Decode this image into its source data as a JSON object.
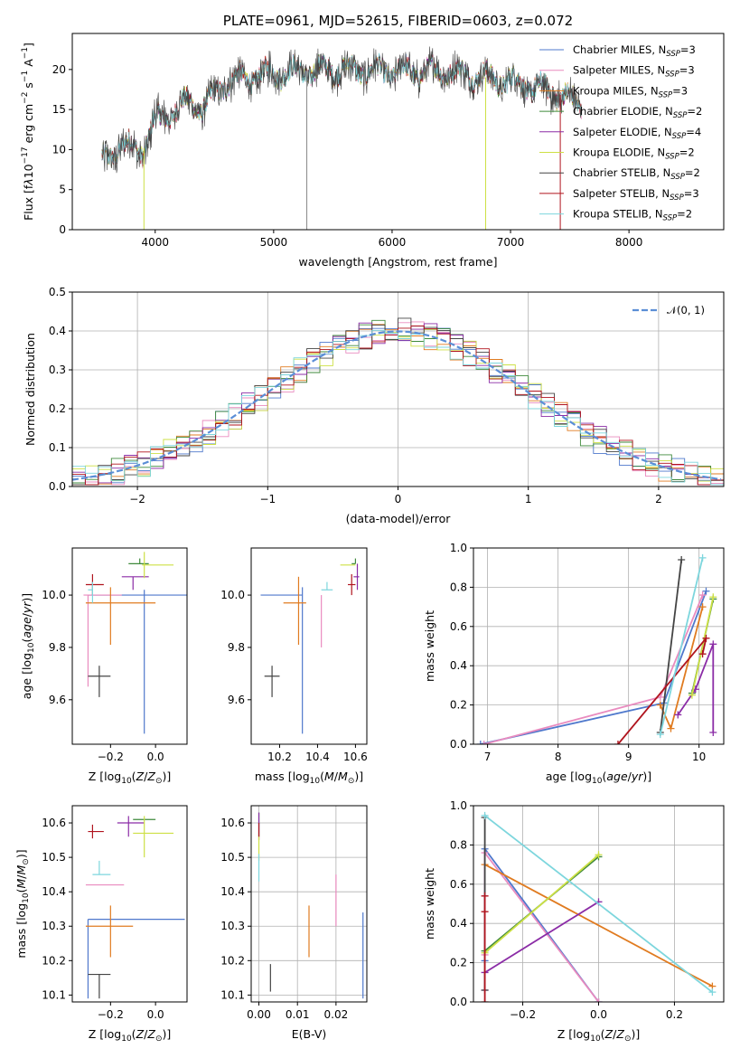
{
  "chart_data": [
    {
      "id": "spectrum",
      "type": "line",
      "title": "PLATE=0961, MJD=52615, FIBERID=0603, z=0.072",
      "xlabel": "wavelength [Angstrom, rest frame]",
      "ylabel_html": "Flux [f<tspan font-style='italic'>λ</tspan>10<tspan dy='-6' font-size='9'>−17</tspan><tspan dy='6'> erg cm</tspan><tspan dy='-6' font-size='9'>−2</tspan><tspan dy='6'> s</tspan><tspan dy='-6' font-size='9'>−1</tspan><tspan dy='6'> A</tspan><tspan dy='-6' font-size='9'>−1</tspan><tspan dy='6'>]</tspan>",
      "xlim": [
        3300,
        8800
      ],
      "ylim": [
        0,
        24.5
      ],
      "xticks": [
        4000,
        5000,
        6000,
        7000,
        8000
      ],
      "yticks": [
        0,
        5,
        10,
        15,
        20
      ],
      "xtick_labels": [
        "4000",
        "5000",
        "6000",
        "7000",
        "8000"
      ],
      "ytick_labels": [
        "0",
        "5",
        "10",
        "15",
        "20"
      ],
      "continuum": [
        [
          3550,
          8.5
        ],
        [
          3700,
          10.5
        ],
        [
          3900,
          10
        ],
        [
          4000,
          13.5
        ],
        [
          4300,
          16
        ],
        [
          4400,
          15
        ],
        [
          4600,
          18.5
        ],
        [
          5000,
          19.5
        ],
        [
          5500,
          20
        ],
        [
          6000,
          19.8
        ],
        [
          6500,
          19.7
        ],
        [
          7000,
          18.5
        ],
        [
          7400,
          17
        ],
        [
          7600,
          15.5
        ]
      ],
      "legend": [
        {
          "label": "Chabrier MILES, N",
          "sub": "SSP",
          "suffix": "=3",
          "color": "#4f78cc"
        },
        {
          "label": "Salpeter MILES, N",
          "sub": "SSP",
          "suffix": "=3",
          "color": "#e98bbf"
        },
        {
          "label": "Kroupa MILES, N",
          "sub": "SSP",
          "suffix": "=3",
          "color": "#e07b20"
        },
        {
          "label": "Chabrier ELODIE, N",
          "sub": "SSP",
          "suffix": "=2",
          "color": "#3f8a3b"
        },
        {
          "label": "Salpeter ELODIE, N",
          "sub": "SSP",
          "suffix": "=4",
          "color": "#8b2ca6"
        },
        {
          "label": "Kroupa ELODIE, N",
          "sub": "SSP",
          "suffix": "=2",
          "color": "#cde045"
        },
        {
          "label": "Chabrier STELIB, N",
          "sub": "SSP",
          "suffix": "=2",
          "color": "#444444"
        },
        {
          "label": "Salpeter STELIB, N",
          "sub": "SSP",
          "suffix": "=3",
          "color": "#b0141e"
        },
        {
          "label": "Kroupa STELIB, N",
          "sub": "SSP",
          "suffix": "=2",
          "color": "#7dd6dd"
        }
      ]
    },
    {
      "id": "residuals",
      "type": "histogram",
      "xlabel": "(data-model)/error",
      "ylabel": "Normed distribution",
      "xlim": [
        -2.5,
        2.5
      ],
      "ylim": [
        0,
        0.5
      ],
      "xticks": [
        -2,
        -1,
        0,
        1,
        2
      ],
      "xtick_labels": [
        "−2",
        "−1",
        "0",
        "1",
        "2"
      ],
      "yticks": [
        0,
        0.1,
        0.2,
        0.3,
        0.4,
        0.5
      ],
      "ytick_labels": [
        "0.0",
        "0.1",
        "0.2",
        "0.3",
        "0.4",
        "0.5"
      ],
      "bin_width": 0.1,
      "gaussian_legend": "𝒩(0, 1)",
      "gaussian_color": "#5b8ed6"
    },
    {
      "id": "age_vs_Z",
      "type": "errorbar",
      "xlabel_html": "Z [log<tspan dy='3' font-size='9'>10</tspan><tspan dy='-3'>(</tspan><tspan font-style='italic'>Z</tspan>/<tspan font-style='italic'>Z</tspan><tspan dy='3' font-size='9'>⊙</tspan><tspan dy='-3'>)]</tspan>",
      "ylabel_html": "age  [log<tspan dy='3' font-size='9'>10</tspan><tspan dy='-3'>(</tspan><tspan font-style='italic'>age</tspan>/<tspan font-style='italic'>yr</tspan>)]",
      "xlim": [
        -0.37,
        0.14
      ],
      "ylim": [
        9.43,
        10.18
      ],
      "xticks": [
        -0.2,
        0.0
      ],
      "xtick_labels": [
        "−0.2",
        "0.0"
      ],
      "yticks": [
        9.6,
        9.8,
        10.0
      ],
      "ytick_labels": [
        "9.6",
        "9.8",
        "10.0"
      ],
      "points": [
        {
          "x": -0.05,
          "y": 10.0,
          "xerr": [
            0.25,
            0.2
          ],
          "yerr": [
            0.53,
            0.02
          ],
          "color": "#4f78cc"
        },
        {
          "x": -0.3,
          "y": 10.0,
          "xerr": [
            0.02,
            0.15
          ],
          "yerr": [
            0.35,
            0.0
          ],
          "color": "#e98bbf"
        },
        {
          "x": -0.2,
          "y": 9.97,
          "xerr": [
            0.11,
            0.2
          ],
          "yerr": [
            0.16,
            0.06
          ],
          "color": "#e07b20"
        },
        {
          "x": -0.07,
          "y": 10.12,
          "xerr": [
            0.05,
            0.04
          ],
          "yerr": [
            0.0,
            0.02
          ],
          "color": "#3f8a3b"
        },
        {
          "x": -0.1,
          "y": 10.07,
          "xerr": [
            0.05,
            0.07
          ],
          "yerr": [
            0.05,
            0.0
          ],
          "color": "#8b2ca6"
        },
        {
          "x": -0.05,
          "y": 10.115,
          "xerr": [
            0.01,
            0.13
          ],
          "yerr": [
            0.05,
            0.05
          ],
          "color": "#cde045"
        },
        {
          "x": -0.25,
          "y": 9.69,
          "xerr": [
            0.05,
            0.05
          ],
          "yerr": [
            0.08,
            0.04
          ],
          "color": "#444444"
        },
        {
          "x": -0.28,
          "y": 10.04,
          "xerr": [
            0.03,
            0.05
          ],
          "yerr": [
            0.04,
            0.04
          ],
          "color": "#b0141e"
        },
        {
          "x": -0.28,
          "y": 10.02,
          "xerr": [
            0.02,
            0.0
          ],
          "yerr": [
            0.05,
            0.03
          ],
          "color": "#7dd6dd"
        }
      ]
    },
    {
      "id": "age_vs_mass",
      "type": "errorbar",
      "xlabel_html": "mass [log<tspan dy='3' font-size='9'>10</tspan><tspan dy='-3'>(</tspan><tspan font-style='italic'>M</tspan>/<tspan font-style='italic'>M</tspan><tspan dy='3' font-size='9'>⊙</tspan><tspan dy='-3'>)]</tspan>",
      "xlim": [
        10.05,
        10.66
      ],
      "ylim": [
        9.43,
        10.18
      ],
      "xticks": [
        10.2,
        10.4,
        10.6
      ],
      "xtick_labels": [
        "10.2",
        "10.4",
        "10.6"
      ],
      "yticks": [
        9.6,
        9.8,
        10.0
      ],
      "ytick_labels": [
        "9.6",
        "9.8",
        "10.0"
      ],
      "points": [
        {
          "x": 10.32,
          "y": 10.0,
          "xerr": [
            0.22,
            0.0
          ],
          "yerr": [
            0.53,
            0.03
          ],
          "color": "#4f78cc"
        },
        {
          "x": 10.42,
          "y": 10.0,
          "xerr": [
            0.0,
            0.0
          ],
          "yerr": [
            0.2,
            0.0
          ],
          "color": "#e98bbf"
        },
        {
          "x": 10.3,
          "y": 9.97,
          "xerr": [
            0.08,
            0.04
          ],
          "yerr": [
            0.16,
            0.1
          ],
          "color": "#e07b20"
        },
        {
          "x": 10.6,
          "y": 10.12,
          "xerr": [
            0.02,
            0.0
          ],
          "yerr": [
            0.0,
            0.02
          ],
          "color": "#3f8a3b"
        },
        {
          "x": 10.61,
          "y": 10.07,
          "xerr": [
            0.02,
            0.01
          ],
          "yerr": [
            0.05,
            0.05
          ],
          "color": "#8b2ca6"
        },
        {
          "x": 10.57,
          "y": 10.115,
          "xerr": [
            0.05,
            0.03
          ],
          "yerr": [
            0.0,
            0.0
          ],
          "color": "#cde045"
        },
        {
          "x": 10.16,
          "y": 9.69,
          "xerr": [
            0.04,
            0.04
          ],
          "yerr": [
            0.08,
            0.04
          ],
          "color": "#444444"
        },
        {
          "x": 10.58,
          "y": 10.04,
          "xerr": [
            0.02,
            0.02
          ],
          "yerr": [
            0.04,
            0.04
          ],
          "color": "#b0141e"
        },
        {
          "x": 10.45,
          "y": 10.02,
          "xerr": [
            0.03,
            0.03
          ],
          "yerr": [
            0.0,
            0.03
          ],
          "color": "#7dd6dd"
        }
      ]
    },
    {
      "id": "weight_vs_age",
      "type": "line",
      "xlabel_html": "age  [log<tspan dy='3' font-size='9'>10</tspan><tspan dy='-3'>(</tspan><tspan font-style='italic'>age</tspan>/<tspan font-style='italic'>yr</tspan>)]",
      "ylabel": "mass weight",
      "xlim": [
        6.8,
        10.35
      ],
      "ylim": [
        0,
        1
      ],
      "xticks": [
        7,
        8,
        9,
        10
      ],
      "xtick_labels": [
        "7",
        "8",
        "9",
        "10"
      ],
      "yticks": [
        0,
        0.2,
        0.4,
        0.6,
        0.8,
        1.0
      ],
      "ytick_labels": [
        "0.0",
        "0.2",
        "0.4",
        "0.6",
        "0.8",
        "1.0"
      ],
      "series": [
        {
          "color": "#4f78cc",
          "x": [
            6.9,
            9.5,
            10.1
          ],
          "y": [
            0.0,
            0.21,
            0.78
          ]
        },
        {
          "color": "#e98bbf",
          "x": [
            6.95,
            9.45,
            10.05
          ],
          "y": [
            0.0,
            0.24,
            0.76
          ]
        },
        {
          "color": "#e07b20",
          "x": [
            9.45,
            9.6,
            10.05
          ],
          "y": [
            0.2,
            0.08,
            0.7
          ]
        },
        {
          "color": "#3f8a3b",
          "x": [
            9.9,
            10.2
          ],
          "y": [
            0.26,
            0.74
          ]
        },
        {
          "color": "#8b2ca6",
          "x": [
            9.7,
            9.95,
            10.2,
            10.2
          ],
          "y": [
            0.15,
            0.28,
            0.51,
            0.06
          ]
        },
        {
          "color": "#cde045",
          "x": [
            9.9,
            10.2
          ],
          "y": [
            0.25,
            0.75
          ]
        },
        {
          "color": "#444444",
          "x": [
            9.45,
            9.75
          ],
          "y": [
            0.06,
            0.94
          ]
        },
        {
          "color": "#b0141e",
          "x": [
            8.85,
            10.1,
            10.05
          ],
          "y": [
            0.0,
            0.54,
            0.46
          ]
        },
        {
          "color": "#7dd6dd",
          "x": [
            9.45,
            10.05
          ],
          "y": [
            0.05,
            0.95
          ]
        }
      ]
    },
    {
      "id": "mass_vs_Z",
      "type": "errorbar",
      "xlabel_html": "Z [log<tspan dy='3' font-size='9'>10</tspan><tspan dy='-3'>(</tspan><tspan font-style='italic'>Z</tspan>/<tspan font-style='italic'>Z</tspan><tspan dy='3' font-size='9'>⊙</tspan><tspan dy='-3'>)]</tspan>",
      "ylabel_html": "mass [log<tspan dy='3' font-size='9'>10</tspan><tspan dy='-3'>(</tspan><tspan font-style='italic'>M</tspan>/<tspan font-style='italic'>M</tspan><tspan dy='3' font-size='9'>⊙</tspan><tspan dy='-3'>)]</tspan>",
      "xlim": [
        -0.37,
        0.14
      ],
      "ylim": [
        10.08,
        10.65
      ],
      "xticks": [
        -0.2,
        0.0
      ],
      "xtick_labels": [
        "−0.2",
        "0.0"
      ],
      "yticks": [
        10.1,
        10.2,
        10.3,
        10.4,
        10.5,
        10.6
      ],
      "ytick_labels": [
        "10.1",
        "10.2",
        "10.3",
        "10.4",
        "10.5",
        "10.6"
      ],
      "points": [
        {
          "x": -0.3,
          "y": 10.32,
          "xerr": [
            0.0,
            0.43
          ],
          "yerr": [
            0.23,
            0.0
          ],
          "color": "#4f78cc"
        },
        {
          "x": -0.22,
          "y": 10.42,
          "xerr": [
            0.09,
            0.08
          ],
          "yerr": [
            0.0,
            0.0
          ],
          "color": "#e98bbf"
        },
        {
          "x": -0.2,
          "y": 10.3,
          "xerr": [
            0.11,
            0.1
          ],
          "yerr": [
            0.09,
            0.06
          ],
          "color": "#e07b20"
        },
        {
          "x": -0.05,
          "y": 10.61,
          "xerr": [
            0.05,
            0.05
          ],
          "yerr": [
            0.0,
            0.0
          ],
          "color": "#3f8a3b"
        },
        {
          "x": -0.12,
          "y": 10.6,
          "xerr": [
            0.05,
            0.07
          ],
          "yerr": [
            0.04,
            0.02
          ],
          "color": "#8b2ca6"
        },
        {
          "x": -0.05,
          "y": 10.57,
          "xerr": [
            0.05,
            0.13
          ],
          "yerr": [
            0.07,
            0.05
          ],
          "color": "#cde045"
        },
        {
          "x": -0.25,
          "y": 10.16,
          "xerr": [
            0.05,
            0.05
          ],
          "yerr": [
            0.07,
            0.0
          ],
          "color": "#444444"
        },
        {
          "x": -0.28,
          "y": 10.575,
          "xerr": [
            0.02,
            0.05
          ],
          "yerr": [
            0.02,
            0.02
          ],
          "color": "#b0141e"
        },
        {
          "x": -0.25,
          "y": 10.45,
          "xerr": [
            0.03,
            0.05
          ],
          "yerr": [
            0.0,
            0.04
          ],
          "color": "#7dd6dd"
        }
      ]
    },
    {
      "id": "mass_vs_ebv",
      "type": "errorbar",
      "xlabel": "E(B-V)",
      "xlim": [
        -0.002,
        0.028
      ],
      "ylim": [
        10.08,
        10.65
      ],
      "xticks": [
        0.0,
        0.01,
        0.02
      ],
      "xtick_labels": [
        "0.00",
        "0.01",
        "0.02"
      ],
      "yticks": [
        10.1,
        10.2,
        10.3,
        10.4,
        10.5,
        10.6
      ],
      "ytick_labels": [
        "10.1",
        "10.2",
        "10.3",
        "10.4",
        "10.5",
        "10.6"
      ],
      "points": [
        {
          "x": 0.027,
          "y": 10.32,
          "yerr": [
            0.23,
            0.02
          ],
          "color": "#4f78cc"
        },
        {
          "x": 0.02,
          "y": 10.37,
          "yerr": [
            0.07,
            0.08
          ],
          "color": "#e98bbf"
        },
        {
          "x": 0.013,
          "y": 10.3,
          "yerr": [
            0.09,
            0.06
          ],
          "color": "#e07b20"
        },
        {
          "x": 0.0,
          "y": 10.6,
          "yerr": [
            0.04,
            0.03
          ],
          "color": "#3f8a3b"
        },
        {
          "x": 0.0,
          "y": 10.59,
          "yerr": [
            0.04,
            0.04
          ],
          "color": "#8b2ca6"
        },
        {
          "x": 0.0,
          "y": 10.53,
          "yerr": [
            0.04,
            0.04
          ],
          "color": "#cde045"
        },
        {
          "x": 0.003,
          "y": 10.15,
          "yerr": [
            0.04,
            0.04
          ],
          "color": "#444444"
        },
        {
          "x": 0.0,
          "y": 10.58,
          "yerr": [
            0.02,
            0.02
          ],
          "color": "#b0141e"
        },
        {
          "x": 0.0,
          "y": 10.47,
          "yerr": [
            0.04,
            0.04
          ],
          "color": "#7dd6dd"
        }
      ]
    },
    {
      "id": "weight_vs_Z",
      "type": "line",
      "xlabel_html": "Z [log<tspan dy='3' font-size='9'>10</tspan><tspan dy='-3'>(</tspan><tspan font-style='italic'>Z</tspan>/<tspan font-style='italic'>Z</tspan><tspan dy='3' font-size='9'>⊙</tspan><tspan dy='-3'>)]</tspan>",
      "ylabel": "mass weight",
      "xlim": [
        -0.33,
        0.33
      ],
      "ylim": [
        0,
        1
      ],
      "xticks": [
        -0.2,
        0.0,
        0.2
      ],
      "xtick_labels": [
        "−0.2",
        "0.0",
        "0.2"
      ],
      "yticks": [
        0,
        0.2,
        0.4,
        0.6,
        0.8,
        1.0
      ],
      "ytick_labels": [
        "0.0",
        "0.2",
        "0.4",
        "0.6",
        "0.8",
        "1.0"
      ],
      "series": [
        {
          "color": "#4f78cc",
          "x": [
            -0.3,
            -0.3,
            0.0
          ],
          "y": [
            0.21,
            0.78,
            0.0
          ]
        },
        {
          "color": "#e98bbf",
          "x": [
            -0.3,
            -0.3,
            0.0
          ],
          "y": [
            0.24,
            0.76,
            0.0
          ]
        },
        {
          "color": "#e07b20",
          "x": [
            -0.3,
            0.3
          ],
          "y": [
            0.7,
            0.08
          ]
        },
        {
          "color": "#3f8a3b",
          "x": [
            -0.3,
            0.0
          ],
          "y": [
            0.26,
            0.74
          ]
        },
        {
          "color": "#8b2ca6",
          "x": [
            -0.3,
            -0.3,
            0.0
          ],
          "y": [
            0.06,
            0.15,
            0.51
          ]
        },
        {
          "color": "#cde045",
          "x": [
            -0.3,
            0.0
          ],
          "y": [
            0.25,
            0.75
          ]
        },
        {
          "color": "#444444",
          "x": [
            -0.3,
            -0.3
          ],
          "y": [
            0.06,
            0.94
          ]
        },
        {
          "color": "#b0141e",
          "x": [
            -0.3,
            -0.3,
            -0.3
          ],
          "y": [
            0.0,
            0.46,
            0.54
          ]
        },
        {
          "color": "#7dd6dd",
          "x": [
            -0.3,
            0.3
          ],
          "y": [
            0.95,
            0.05
          ]
        }
      ]
    }
  ]
}
